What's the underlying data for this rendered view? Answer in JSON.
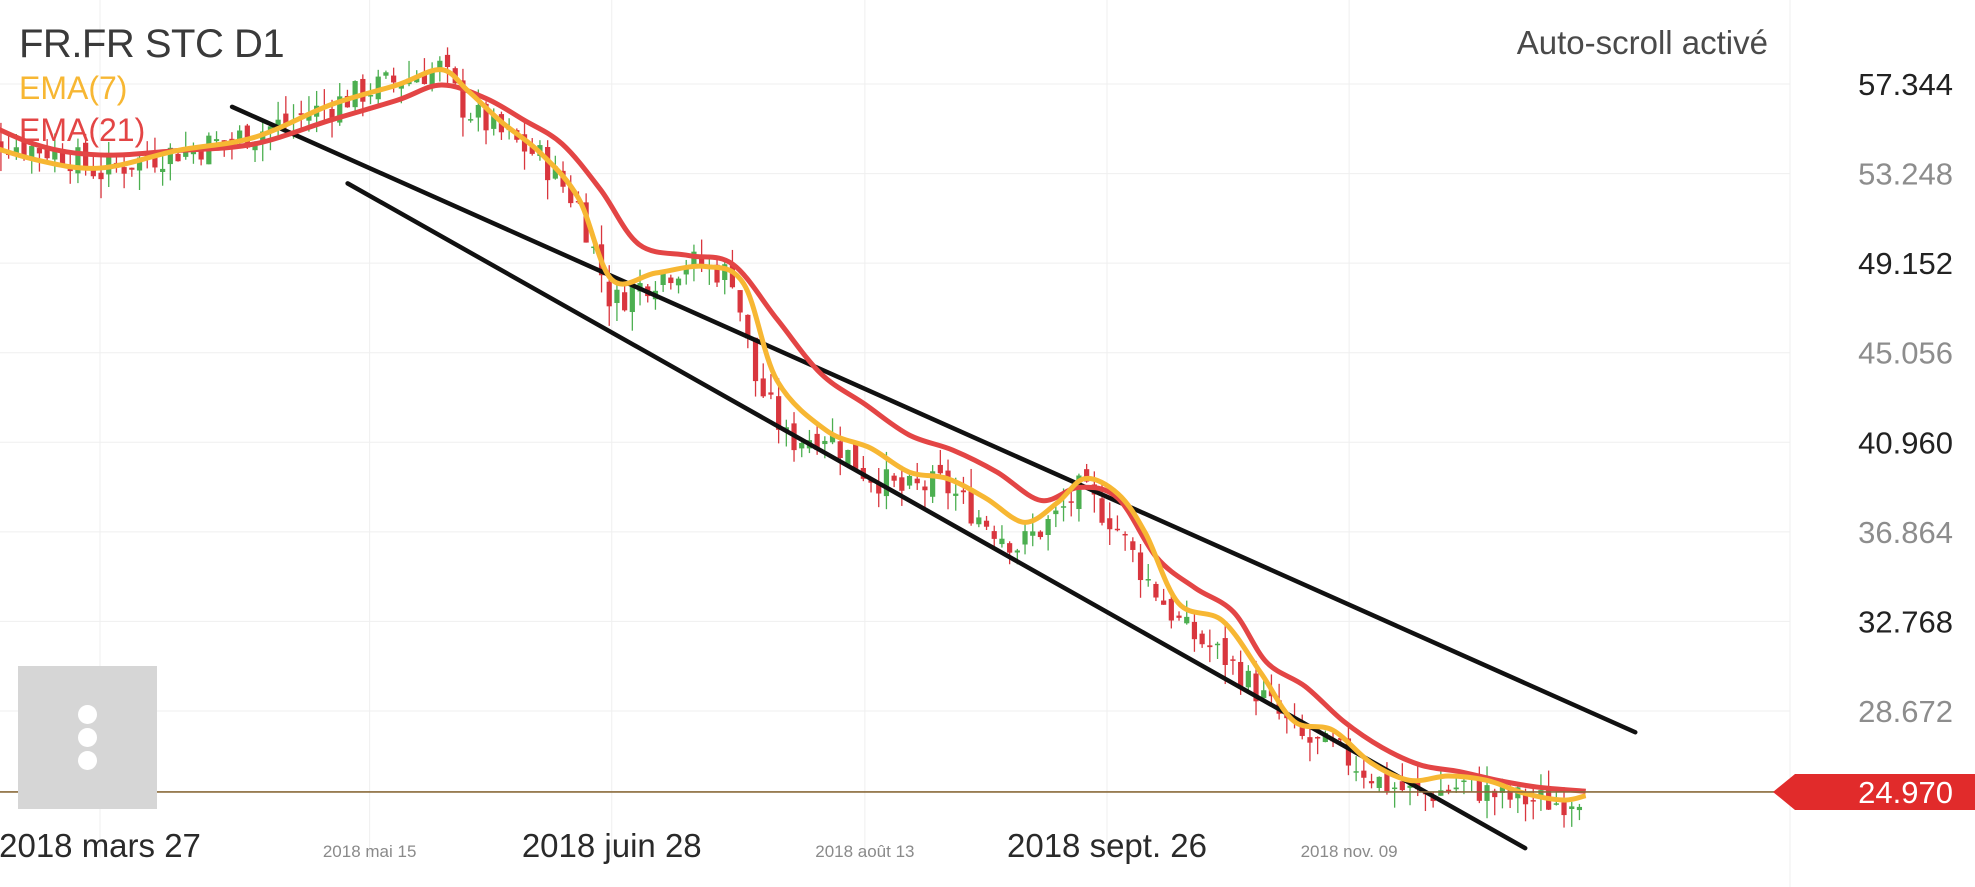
{
  "header": {
    "symbol": "FR.FR STC D1",
    "indicators": [
      {
        "label": "EMA(7)",
        "color": "#f7b733"
      },
      {
        "label": "EMA(21)",
        "color": "#e34545"
      }
    ],
    "autoscroll_label": "Auto-scroll activé"
  },
  "menu": {
    "icon": "more-vertical-icon"
  },
  "colors": {
    "up": "#4caf50",
    "down": "#d9363e",
    "trendline": "#111111",
    "current_line": "#8a6a3a",
    "current_badge": "#e12b2b"
  },
  "chart_data": {
    "type": "candlestick",
    "title": "",
    "y_ticks": [
      57.344,
      53.248,
      49.152,
      45.056,
      40.96,
      36.864,
      32.768,
      28.672
    ],
    "y_tick_labels": [
      "57.344",
      "53.248",
      "49.152",
      "45.056",
      "40.960",
      "36.864",
      "32.768",
      "28.672"
    ],
    "y_range": [
      22.2,
      60.8
    ],
    "x_labels": [
      {
        "date": "2018-03-27",
        "label": "2018 mars 27",
        "major": true
      },
      {
        "date": "2018-05-15",
        "label": "2018 mai 15",
        "major": false
      },
      {
        "date": "2018-06-28",
        "label": "2018 juin 28",
        "major": true
      },
      {
        "date": "2018-08-13",
        "label": "2018 août 13",
        "major": false
      },
      {
        "date": "2018-09-26",
        "label": "2018 sept. 26",
        "major": true
      },
      {
        "date": "2018-11-09",
        "label": "2018 nov. 09",
        "major": false
      }
    ],
    "current_price": 24.97,
    "current_price_label": "24.970",
    "close_path": [
      [
        "2018-03-02",
        55.0
      ],
      [
        "2018-03-20",
        54.2
      ],
      [
        "2018-03-27",
        53.3
      ],
      [
        "2018-04-05",
        54.0
      ],
      [
        "2018-04-20",
        54.8
      ],
      [
        "2018-05-01",
        55.7
      ],
      [
        "2018-05-15",
        57.1
      ],
      [
        "2018-05-28",
        58.1
      ],
      [
        "2018-06-01",
        56.3
      ],
      [
        "2018-06-07",
        55.2
      ],
      [
        "2018-06-15",
        54.0
      ],
      [
        "2018-06-22",
        51.8
      ],
      [
        "2018-06-28",
        47.3
      ],
      [
        "2018-07-05",
        48.4
      ],
      [
        "2018-07-12",
        49.2
      ],
      [
        "2018-07-20",
        48.6
      ],
      [
        "2018-07-24",
        43.9
      ],
      [
        "2018-07-30",
        41.0
      ],
      [
        "2018-08-06",
        41.4
      ],
      [
        "2018-08-13",
        39.6
      ],
      [
        "2018-08-20",
        38.7
      ],
      [
        "2018-08-27",
        39.1
      ],
      [
        "2018-09-03",
        37.5
      ],
      [
        "2018-09-10",
        36.2
      ],
      [
        "2018-09-17",
        37.6
      ],
      [
        "2018-09-21",
        38.8
      ],
      [
        "2018-09-27",
        37.4
      ],
      [
        "2018-10-03",
        34.8
      ],
      [
        "2018-10-10",
        32.4
      ],
      [
        "2018-10-18",
        31.0
      ],
      [
        "2018-10-25",
        29.1
      ],
      [
        "2018-10-31",
        27.4
      ],
      [
        "2018-11-07",
        26.8
      ],
      [
        "2018-11-15",
        25.4
      ],
      [
        "2018-11-22",
        24.8
      ],
      [
        "2018-11-30",
        25.3
      ],
      [
        "2018-12-07",
        24.7
      ],
      [
        "2018-12-17",
        24.5
      ],
      [
        "2018-12-21",
        24.9
      ]
    ],
    "ema7": [
      [
        "2018-03-01",
        55.0
      ],
      [
        "2018-03-15",
        53.9
      ],
      [
        "2018-03-27",
        53.5
      ],
      [
        "2018-04-10",
        54.3
      ],
      [
        "2018-04-24",
        54.9
      ],
      [
        "2018-05-08",
        56.4
      ],
      [
        "2018-05-20",
        57.3
      ],
      [
        "2018-05-28",
        58.0
      ],
      [
        "2018-06-02",
        57.0
      ],
      [
        "2018-06-08",
        55.6
      ],
      [
        "2018-06-15",
        54.2
      ],
      [
        "2018-06-22",
        52.1
      ],
      [
        "2018-06-28",
        48.4
      ],
      [
        "2018-07-06",
        48.7
      ],
      [
        "2018-07-15",
        49.0
      ],
      [
        "2018-07-22",
        48.2
      ],
      [
        "2018-07-28",
        43.8
      ],
      [
        "2018-08-06",
        41.5
      ],
      [
        "2018-08-14",
        40.7
      ],
      [
        "2018-08-21",
        39.6
      ],
      [
        "2018-08-28",
        39.3
      ],
      [
        "2018-09-04",
        38.4
      ],
      [
        "2018-09-11",
        37.3
      ],
      [
        "2018-09-17",
        38.2
      ],
      [
        "2018-09-22",
        39.3
      ],
      [
        "2018-09-28",
        38.6
      ],
      [
        "2018-10-03",
        36.8
      ],
      [
        "2018-10-09",
        33.6
      ],
      [
        "2018-10-17",
        32.8
      ],
      [
        "2018-10-24",
        30.4
      ],
      [
        "2018-10-30",
        28.2
      ],
      [
        "2018-11-06",
        27.8
      ],
      [
        "2018-11-13",
        26.3
      ],
      [
        "2018-11-20",
        25.5
      ],
      [
        "2018-11-27",
        25.7
      ],
      [
        "2018-12-04",
        25.5
      ],
      [
        "2018-12-11",
        24.9
      ],
      [
        "2018-12-18",
        24.6
      ],
      [
        "2018-12-22",
        24.8
      ]
    ],
    "ema21": [
      [
        "2018-03-01",
        56.2
      ],
      [
        "2018-03-15",
        54.6
      ],
      [
        "2018-03-27",
        54.1
      ],
      [
        "2018-04-10",
        54.3
      ],
      [
        "2018-04-24",
        54.6
      ],
      [
        "2018-05-08",
        55.7
      ],
      [
        "2018-05-20",
        56.6
      ],
      [
        "2018-05-28",
        57.3
      ],
      [
        "2018-06-05",
        56.7
      ],
      [
        "2018-06-12",
        55.7
      ],
      [
        "2018-06-19",
        54.6
      ],
      [
        "2018-06-26",
        52.5
      ],
      [
        "2018-07-03",
        50.0
      ],
      [
        "2018-07-12",
        49.5
      ],
      [
        "2018-07-20",
        49.1
      ],
      [
        "2018-07-28",
        46.6
      ],
      [
        "2018-08-05",
        44.1
      ],
      [
        "2018-08-13",
        42.7
      ],
      [
        "2018-08-21",
        41.3
      ],
      [
        "2018-08-29",
        40.6
      ],
      [
        "2018-09-06",
        39.6
      ],
      [
        "2018-09-14",
        38.3
      ],
      [
        "2018-09-21",
        38.9
      ],
      [
        "2018-09-28",
        38.4
      ],
      [
        "2018-10-05",
        35.7
      ],
      [
        "2018-10-12",
        34.3
      ],
      [
        "2018-10-19",
        33.2
      ],
      [
        "2018-10-25",
        30.9
      ],
      [
        "2018-11-01",
        29.8
      ],
      [
        "2018-11-08",
        28.2
      ],
      [
        "2018-11-15",
        27.0
      ],
      [
        "2018-11-22",
        26.2
      ],
      [
        "2018-11-29",
        25.9
      ],
      [
        "2018-12-06",
        25.5
      ],
      [
        "2018-12-13",
        25.2
      ],
      [
        "2018-12-22",
        25.0
      ]
    ],
    "trendlines": [
      {
        "from": [
          "2018-04-20",
          56.3
        ],
        "to": [
          "2018-12-31",
          27.7
        ]
      },
      {
        "from": [
          "2018-05-11",
          52.8
        ],
        "to": [
          "2018-12-11",
          22.4
        ]
      }
    ]
  }
}
